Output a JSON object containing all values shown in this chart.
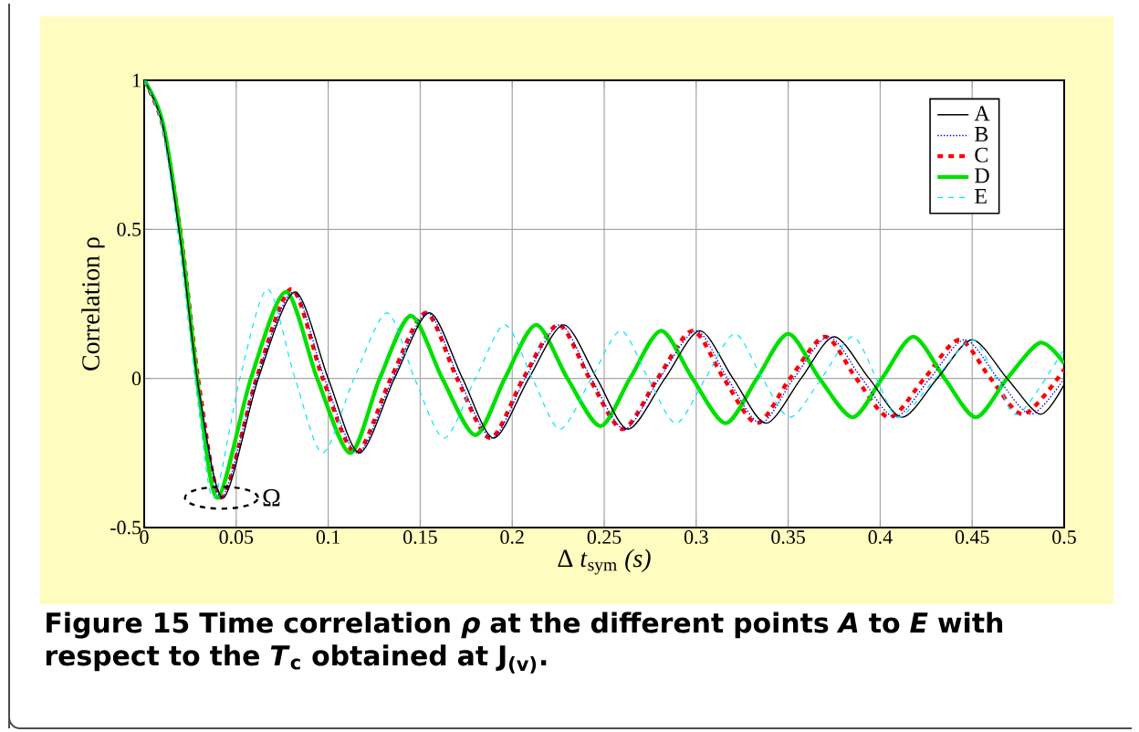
{
  "chart_data": {
    "type": "line",
    "title": "**Figure 15** Time correlation *ρ* at the different points *A* to *E* with respect to the *T*$_{c}$ obtained at J$_{(v)}$.",
    "xlabel": "Δ *t*$_{sym}$ *(s)*",
    "ylabel": "Correlation ρ",
    "xlim": [
      0,
      0.5
    ],
    "ylim": [
      -0.5,
      1
    ],
    "xticks": [
      0,
      0.05,
      0.1,
      0.15,
      0.2,
      0.25,
      0.3,
      0.35,
      0.4,
      0.45,
      0.5
    ],
    "yticks": [
      -0.5,
      0,
      0.5,
      1
    ],
    "grid": true,
    "legend": "top right",
    "annotations": [
      {
        "text": "Ω",
        "x": 0.042,
        "y": -0.4
      }
    ],
    "series": [
      {
        "name": "A",
        "color": "#000000",
        "line_style": "solid",
        "x": [
          0,
          0.01,
          0.02,
          0.03,
          0.043,
          0.062,
          0.082,
          0.1,
          0.117,
          0.136,
          0.155,
          0.173,
          0.19,
          0.209,
          0.228,
          0.246,
          0.263,
          0.283,
          0.302,
          0.32,
          0.338,
          0.357,
          0.375,
          0.394,
          0.412,
          0.431,
          0.45,
          0.469,
          0.487,
          0.5
        ],
        "values": [
          1,
          0.85,
          0.45,
          -0.05,
          -0.4,
          0,
          0.29,
          0,
          -0.25,
          0,
          0.22,
          0,
          -0.2,
          0,
          0.18,
          0,
          -0.17,
          0,
          0.16,
          0,
          -0.15,
          0,
          0.14,
          0,
          -0.13,
          0,
          0.13,
          0,
          -0.12,
          -0.02
        ]
      },
      {
        "name": "B",
        "color": "#0000ff",
        "line_style": "dotted",
        "x": [
          0.03,
          0.042,
          0.061,
          0.081,
          0.098,
          0.116,
          0.135,
          0.154,
          0.171,
          0.189,
          0.207,
          0.226,
          0.243,
          0.261,
          0.28,
          0.3,
          0.317,
          0.335,
          0.353,
          0.372,
          0.39,
          0.408,
          0.427,
          0.446,
          0.464,
          0.482,
          0.5
        ],
        "values": [
          -0.04,
          -0.4,
          0,
          0.29,
          0,
          -0.25,
          0,
          0.22,
          0,
          -0.2,
          0,
          0.18,
          0,
          -0.17,
          0,
          0.16,
          0,
          -0.15,
          0,
          0.14,
          0,
          -0.13,
          0,
          0.13,
          0,
          -0.12,
          0
        ]
      },
      {
        "name": "C",
        "color": "#ff0000",
        "line_style": "dashed",
        "x": [
          0,
          0.01,
          0.02,
          0.03,
          0.042,
          0.061,
          0.08,
          0.097,
          0.115,
          0.134,
          0.153,
          0.17,
          0.188,
          0.206,
          0.225,
          0.242,
          0.26,
          0.279,
          0.298,
          0.315,
          0.333,
          0.351,
          0.37,
          0.387,
          0.405,
          0.424,
          0.443,
          0.46,
          0.478,
          0.5
        ],
        "values": [
          1,
          0.85,
          0.48,
          -0.03,
          -0.4,
          0,
          0.3,
          0,
          -0.25,
          0,
          0.22,
          0,
          -0.2,
          0,
          0.18,
          0,
          -0.17,
          0,
          0.16,
          0,
          -0.15,
          0,
          0.14,
          0,
          -0.13,
          0,
          0.13,
          0,
          -0.12,
          0.03
        ]
      },
      {
        "name": "D",
        "color": "#00e000",
        "line_style": "solid",
        "x": [
          0,
          0.01,
          0.02,
          0.03,
          0.04,
          0.058,
          0.077,
          0.094,
          0.112,
          0.128,
          0.145,
          0.162,
          0.18,
          0.196,
          0.213,
          0.23,
          0.248,
          0.264,
          0.281,
          0.298,
          0.316,
          0.333,
          0.35,
          0.367,
          0.385,
          0.401,
          0.418,
          0.435,
          0.452,
          0.469,
          0.487,
          0.5
        ],
        "values": [
          1,
          0.86,
          0.47,
          -0.06,
          -0.4,
          0,
          0.29,
          0,
          -0.25,
          0,
          0.21,
          0,
          -0.19,
          0,
          0.18,
          0,
          -0.16,
          0,
          0.16,
          0,
          -0.15,
          0,
          0.15,
          0,
          -0.13,
          0,
          0.14,
          0,
          -0.13,
          0,
          0.12,
          0.05
        ]
      },
      {
        "name": "E",
        "color": "#00e5ff",
        "line_style": "dashed",
        "x": [
          0,
          0.01,
          0.02,
          0.03,
          0.038,
          0.052,
          0.067,
          0.082,
          0.097,
          0.114,
          0.132,
          0.147,
          0.163,
          0.18,
          0.196,
          0.211,
          0.226,
          0.243,
          0.259,
          0.274,
          0.289,
          0.305,
          0.321,
          0.336,
          0.351,
          0.368,
          0.385,
          0.398,
          0.41,
          0.43,
          0.45,
          0.463,
          0.475,
          0.5
        ],
        "values": [
          1,
          0.84,
          0.4,
          -0.12,
          -0.4,
          0,
          0.3,
          0,
          -0.25,
          0,
          0.22,
          0,
          -0.2,
          0,
          0.18,
          0,
          -0.17,
          0,
          0.16,
          0,
          -0.15,
          0,
          0.15,
          0,
          -0.13,
          0,
          0.14,
          0,
          -0.13,
          0,
          0.13,
          0,
          -0.12,
          0.1
        ]
      }
    ]
  }
}
